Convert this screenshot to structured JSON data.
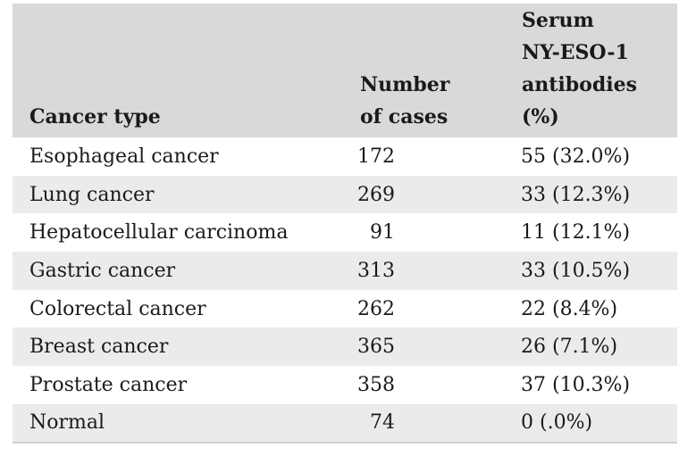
{
  "table": {
    "headers": {
      "cancer_type": [
        "Cancer type"
      ],
      "cases": [
        "Number",
        "of cases"
      ],
      "antibodies": [
        "Serum",
        "NY-ESO-1",
        "antibodies",
        "(%)"
      ]
    },
    "rows": [
      {
        "type": "Esophageal cancer",
        "cases": "172",
        "antibodies": "55 (32.0%)"
      },
      {
        "type": "Lung cancer",
        "cases": "269",
        "antibodies": "33 (12.3%)"
      },
      {
        "type": "Hepatocellular carcinoma",
        "cases": "91",
        "antibodies": "11 (12.1%)"
      },
      {
        "type": "Gastric cancer",
        "cases": "313",
        "antibodies": "33 (10.5%)"
      },
      {
        "type": "Colorectal cancer",
        "cases": "262",
        "antibodies": "22 (8.4%)"
      },
      {
        "type": "Breast cancer",
        "cases": "365",
        "antibodies": "26 (7.1%)"
      },
      {
        "type": "Prostate cancer",
        "cases": "358",
        "antibodies": "37 (10.3%)"
      },
      {
        "type": "Normal",
        "cases": "74",
        "antibodies": "0 (.0%)"
      }
    ]
  }
}
